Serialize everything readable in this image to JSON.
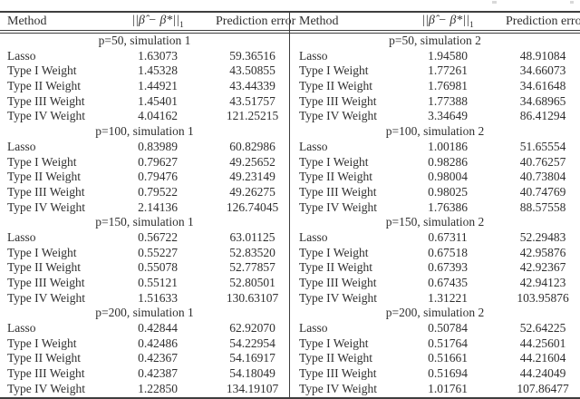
{
  "page": {
    "background": "#ffffff",
    "text_color": "#2f2f2f",
    "rule_color": "#3e3e3e"
  },
  "columns": {
    "method": "Method",
    "norm_prefix": "||β̂ − β*||",
    "norm_sub": "1",
    "prediction": "Prediction error"
  },
  "tables": [
    {
      "name": "left",
      "sections": [
        {
          "title": "p=50, simulation 1",
          "rows": [
            {
              "method": "Lasso",
              "norm": "1.63073",
              "prediction": "59.36516"
            },
            {
              "method": "Type I Weight",
              "norm": "1.45328",
              "prediction": "43.50855"
            },
            {
              "method": "Type II Weight",
              "norm": "1.44921",
              "prediction": "43.44339"
            },
            {
              "method": "Type III Weight",
              "norm": "1.45401",
              "prediction": "43.51757"
            },
            {
              "method": "Type IV Weight",
              "norm": "4.04162",
              "prediction": "121.25215"
            }
          ]
        },
        {
          "title": "p=100, simulation 1",
          "rows": [
            {
              "method": "Lasso",
              "norm": "0.83989",
              "prediction": "60.82986"
            },
            {
              "method": "Type I Weight",
              "norm": "0.79627",
              "prediction": "49.25652"
            },
            {
              "method": "Type II Weight",
              "norm": "0.79476",
              "prediction": "49.23149"
            },
            {
              "method": "Type III Weight",
              "norm": "0.79522",
              "prediction": "49.26275"
            },
            {
              "method": "Type IV Weight",
              "norm": "2.14136",
              "prediction": "126.74045"
            }
          ]
        },
        {
          "title": "p=150, simulation 1",
          "rows": [
            {
              "method": "Lasso",
              "norm": "0.56722",
              "prediction": "63.01125"
            },
            {
              "method": "Type I Weight",
              "norm": "0.55227",
              "prediction": "52.83520"
            },
            {
              "method": "Type II Weight",
              "norm": "0.55078",
              "prediction": "52.77857"
            },
            {
              "method": "Type III Weight",
              "norm": "0.55121",
              "prediction": "52.80501"
            },
            {
              "method": "Type IV Weight",
              "norm": "1.51633",
              "prediction": "130.63107"
            }
          ]
        },
        {
          "title": "p=200, simulation 1",
          "rows": [
            {
              "method": "Lasso",
              "norm": "0.42844",
              "prediction": "62.92070"
            },
            {
              "method": "Type I Weight",
              "norm": "0.42486",
              "prediction": "54.22954"
            },
            {
              "method": "Type II Weight",
              "norm": "0.42367",
              "prediction": "54.16917"
            },
            {
              "method": "Type III Weight",
              "norm": "0.42387",
              "prediction": "54.18049"
            },
            {
              "method": "Type IV Weight",
              "norm": "1.22850",
              "prediction": "134.19107"
            }
          ]
        }
      ]
    },
    {
      "name": "right",
      "sections": [
        {
          "title": "p=50, simulation 2",
          "rows": [
            {
              "method": "Lasso",
              "norm": "1.94580",
              "prediction": "48.91084"
            },
            {
              "method": "Type I Weight",
              "norm": "1.77261",
              "prediction": "34.66073"
            },
            {
              "method": "Type II Weight",
              "norm": "1.76981",
              "prediction": "34.61648"
            },
            {
              "method": "Type III Weight",
              "norm": "1.77388",
              "prediction": "34.68965"
            },
            {
              "method": "Type IV Weight",
              "norm": "3.34649",
              "prediction": "86.41294"
            }
          ]
        },
        {
          "title": "p=100, simulation 2",
          "rows": [
            {
              "method": "Lasso",
              "norm": "1.00186",
              "prediction": "51.65554"
            },
            {
              "method": "Type I Weight",
              "norm": "0.98286",
              "prediction": "40.76257"
            },
            {
              "method": "Type II Weight",
              "norm": "0.98004",
              "prediction": "40.73804"
            },
            {
              "method": "Type III Weight",
              "norm": "0.98025",
              "prediction": "40.74769"
            },
            {
              "method": "Type IV Weight",
              "norm": "1.76386",
              "prediction": "88.57558"
            }
          ]
        },
        {
          "title": "p=150, simulation 2",
          "rows": [
            {
              "method": "Lasso",
              "norm": "0.67311",
              "prediction": "52.29483"
            },
            {
              "method": "Type I Weight",
              "norm": "0.67518",
              "prediction": "42.95876"
            },
            {
              "method": "Type II Weight",
              "norm": "0.67393",
              "prediction": "42.92367"
            },
            {
              "method": "Type III Weight",
              "norm": "0.67435",
              "prediction": "42.94123"
            },
            {
              "method": "Type IV Weight",
              "norm": "1.31221",
              "prediction": "103.95876"
            }
          ]
        },
        {
          "title": "p=200, simulation 2",
          "rows": [
            {
              "method": "Lasso",
              "norm": "0.50784",
              "prediction": "52.64225"
            },
            {
              "method": "Type I Weight",
              "norm": "0.51764",
              "prediction": "44.25601"
            },
            {
              "method": "Type II Weight",
              "norm": "0.51661",
              "prediction": "44.21604"
            },
            {
              "method": "Type III Weight",
              "norm": "0.51694",
              "prediction": "44.24049"
            },
            {
              "method": "Type IV Weight",
              "norm": "1.01761",
              "prediction": "107.86477"
            }
          ]
        }
      ]
    }
  ]
}
